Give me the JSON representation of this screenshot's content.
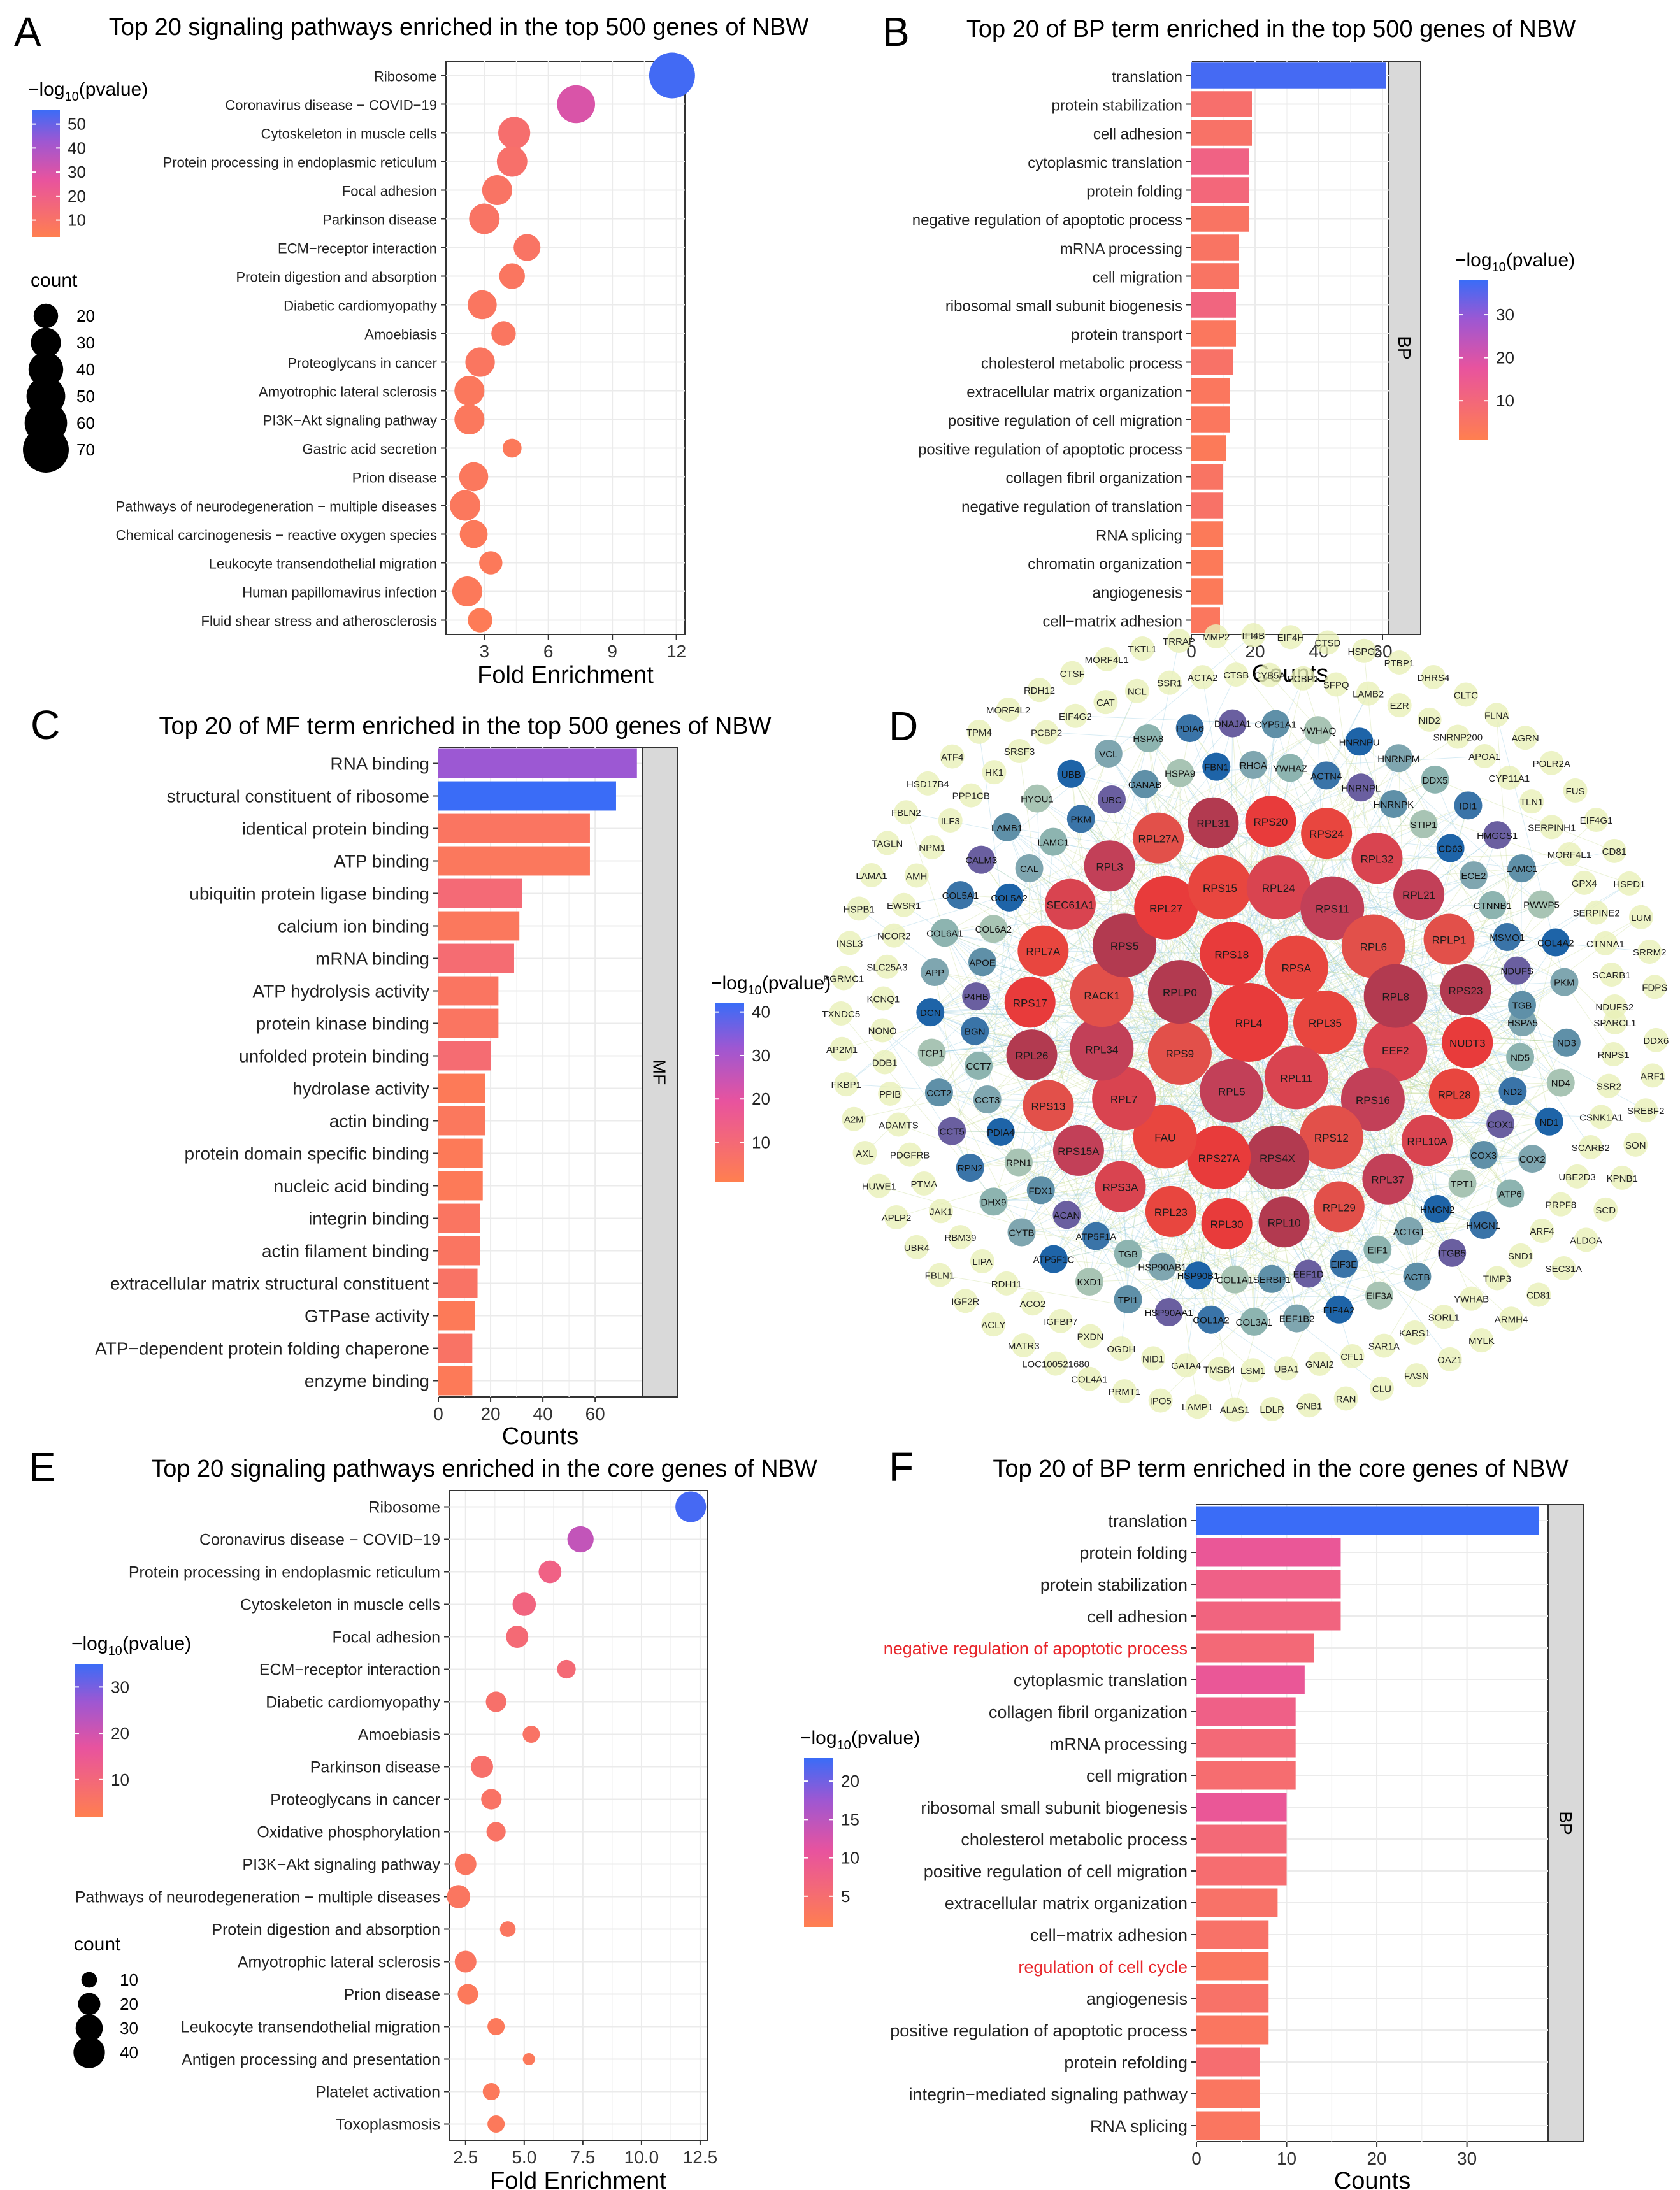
{
  "panels": {
    "A": {
      "letter": "A",
      "title": "Top 20 signaling pathways enriched in the top 500 genes of NBW",
      "legend_color_title": "−log10(pvalue)",
      "legend_color_ticks": [
        "50",
        "40",
        "30",
        "20",
        "10"
      ],
      "legend_size_title": "count",
      "legend_size_entries": [
        "20",
        "30",
        "40",
        "50",
        "60",
        "70"
      ]
    },
    "B": {
      "letter": "B",
      "title": "Top 20 of BP term enriched in the top 500 genes of NBW",
      "facet": "BP",
      "legend_color_title": "−log10(pvalue)",
      "legend_color_ticks": [
        "30",
        "20",
        "10"
      ]
    },
    "C": {
      "letter": "C",
      "title": "Top 20 of MF term enriched in the top 500 genes of NBW",
      "facet": "MF",
      "legend_color_title": "−log10(pvalue)",
      "legend_color_ticks": [
        "40",
        "30",
        "20",
        "10"
      ]
    },
    "D": {
      "letter": "D"
    },
    "E": {
      "letter": "E",
      "title": "Top 20 signaling pathways enriched in the core genes of NBW",
      "legend_color_title": "−log10(pvalue)",
      "legend_color_ticks": [
        "30",
        "20",
        "10"
      ],
      "legend_size_title": "count",
      "legend_size_entries": [
        "10",
        "20",
        "30",
        "40"
      ]
    },
    "F": {
      "letter": "F",
      "title": "Top 20 of BP term enriched in the core genes of NBW",
      "facet": "BP",
      "legend_color_title": "−log10(pvalue)",
      "legend_color_ticks": [
        "20",
        "15",
        "10",
        "5"
      ]
    }
  },
  "chart_data": [
    {
      "id": "A",
      "type": "scatter",
      "xlabel": "Fold Enrichment",
      "xlim": [
        1.2,
        12.4
      ],
      "xticks": [
        3,
        6,
        9,
        12
      ],
      "categories": [
        "Ribosome",
        "Coronavirus disease − COVID−19",
        "Cytoskeleton in muscle cells",
        "Protein processing in endoplasmic reticulum",
        "Focal adhesion",
        "Parkinson disease",
        "ECM−receptor interaction",
        "Protein digestion and absorption",
        "Diabetic cardiomyopathy",
        "Amoebiasis",
        "Proteoglycans in cancer",
        "Amyotrophic lateral sclerosis",
        "PI3K−Akt signaling pathway",
        "Gastric acid secretion",
        "Prion disease",
        "Pathways of neurodegeneration − multiple diseases",
        "Chemical carcinogenesis − reactive oxygen species",
        "Leukocyte transendothelial migration",
        "Human papillomavirus infection",
        "Fluid shear stress and atherosclerosis"
      ],
      "x": [
        11.8,
        7.3,
        4.4,
        4.3,
        3.6,
        3.0,
        5.0,
        4.3,
        2.9,
        3.9,
        2.8,
        2.3,
        2.3,
        4.3,
        2.5,
        2.1,
        2.5,
        3.3,
        2.2,
        2.8
      ],
      "count": [
        70,
        48,
        34,
        31,
        30,
        31,
        24,
        22,
        28,
        20,
        29,
        30,
        30,
        12,
        28,
        31,
        26,
        18,
        30,
        20
      ],
      "neglog10p": [
        55,
        30,
        12,
        11,
        9,
        9,
        9,
        8,
        8,
        8,
        8,
        7,
        7,
        6,
        7,
        7,
        6,
        6,
        6,
        5
      ],
      "color_lim": [
        3,
        56
      ],
      "size_lim": [
        10,
        70
      ]
    },
    {
      "id": "B",
      "type": "bar",
      "xlabel": "Counts",
      "xlim": [
        0,
        62
      ],
      "xticks": [
        0,
        20,
        40,
        60
      ],
      "categories": [
        "translation",
        "protein stabilization",
        "cell adhesion",
        "cytoplasmic translation",
        "protein folding",
        "negative regulation of apoptotic process",
        "mRNA processing",
        "cell migration",
        "ribosomal small subunit biogenesis",
        "protein transport",
        "cholesterol metabolic process",
        "extracellular matrix organization",
        "positive regulation of cell migration",
        "positive regulation of apoptotic process",
        "collagen fibril organization",
        "negative regulation of translation",
        "RNA splicing",
        "chromatin organization",
        "angiogenesis",
        "cell−matrix adhesion"
      ],
      "values": [
        61,
        19,
        19,
        18,
        18,
        18,
        15,
        15,
        14,
        14,
        13,
        12,
        12,
        11,
        10,
        10,
        10,
        10,
        10,
        9
      ],
      "neglog10p": [
        37,
        7,
        6,
        12,
        10,
        5,
        5,
        5,
        11,
        4,
        6,
        4,
        4,
        3,
        5,
        6,
        3,
        3,
        3,
        4
      ],
      "color_lim": [
        1,
        38
      ]
    },
    {
      "id": "C",
      "type": "bar",
      "xlabel": "Counts",
      "xlim": [
        0,
        78
      ],
      "xticks": [
        0,
        20,
        40,
        60
      ],
      "categories": [
        "RNA binding",
        "structural constituent of ribosome",
        "identical protein binding",
        "ATP binding",
        "ubiquitin protein ligase binding",
        "calcium ion binding",
        "mRNA binding",
        "ATP hydrolysis activity",
        "protein kinase binding",
        "unfolded protein binding",
        "hydrolase activity",
        "actin binding",
        "protein domain specific binding",
        "nucleic acid binding",
        "integrin binding",
        "actin filament binding",
        "extracellular matrix structural constituent",
        "GTPase activity",
        "ATP−dependent protein folding chaperone",
        "enzyme binding"
      ],
      "values": [
        76,
        68,
        58,
        58,
        32,
        31,
        29,
        23,
        23,
        20,
        18,
        18,
        17,
        17,
        16,
        16,
        15,
        14,
        13,
        13
      ],
      "neglog10p": [
        32,
        42,
        5,
        4,
        10,
        4,
        9,
        5,
        5,
        9,
        3,
        4,
        3,
        3,
        5,
        5,
        6,
        3,
        6,
        3
      ],
      "color_lim": [
        1,
        42
      ]
    },
    {
      "id": "D",
      "type": "network",
      "inner_nodes": [
        "RPL4",
        "RPL35",
        "RPL11",
        "RPL5",
        "RPS9",
        "RPLP0",
        "RPS18",
        "RPSA",
        "EEF2",
        "RPS16",
        "RPS12",
        "RPS4X",
        "RPS27A",
        "FAU",
        "RPL7",
        "RPL34",
        "RACK1",
        "RPS5",
        "RPL27",
        "RPS15",
        "RPL24",
        "RPS11",
        "RPL6",
        "RPL8",
        "NUDT3",
        "RPL28",
        "RPL10A",
        "RPL37",
        "RPL29",
        "RPL10",
        "RPL30",
        "RPL23",
        "RPS3A",
        "RPS15A",
        "RPS13",
        "RPL26",
        "RPS17",
        "RPL7A",
        "SEC61A1",
        "RPL3",
        "RPL27A",
        "RPL31",
        "RPS20",
        "RPS24",
        "RPL32",
        "RPL21",
        "RPLP1",
        "RPS23"
      ],
      "mid_nodes": [
        "HSPA5",
        "ND3",
        "ND5",
        "ND4",
        "ND2",
        "ND1",
        "COX1",
        "COX2",
        "COX3",
        "ATP6",
        "TPT1",
        "HMGN1",
        "HMGN2",
        "ITGB5",
        "ACTG1",
        "ACTB",
        "EIF1",
        "EIF3A",
        "EIF3E",
        "EIF4A2",
        "EEF1D",
        "EEF1B2",
        "SERBP1",
        "COL3A1",
        "COL1A1",
        "COL1A2",
        "HSP90B1",
        "HSP90AA1",
        "HSP90AB1",
        "TPI1",
        "TGB",
        "KXD1",
        "ATP5F1A",
        "ATP5F1C",
        "ACAN",
        "CYTB",
        "FDX1",
        "DHX9",
        "RPN1",
        "RPN2",
        "PDIA4",
        "CCT5",
        "CCT3",
        "CCT2",
        "CCT7",
        "TCP1",
        "BGN",
        "DCN",
        "P4HB",
        "APP",
        "APOE",
        "COL6A1",
        "COL6A2",
        "COL5A1",
        "COL5A2",
        "CALM3",
        "CAL",
        "LAMB1",
        "LAMC1",
        "HYOU1",
        "PKM",
        "UBB",
        "UBC",
        "VCL",
        "GANAB",
        "HSPA8",
        "HSPA9",
        "PDIA6",
        "FBN1",
        "DNAJA1",
        "RHOA",
        "CYP51A1",
        "YWHAZ",
        "YWHAQ",
        "ACTN4",
        "HNRNPU",
        "HNRNPL",
        "HNRNPM",
        "HNRNPK",
        "DDX5",
        "STIP1",
        "IDI1",
        "CD63",
        "HMGCS1",
        "ECE2",
        "LAMC1",
        "CTNNB1",
        "PWWP5",
        "MSMO1",
        "COL4A2",
        "NDUFS",
        "PKM",
        "TGB"
      ],
      "outer_nodes": [
        "SPARCL1",
        "DDX6",
        "RNPS1",
        "ARF1",
        "SSR2",
        "SREBF2",
        "CSNK1A1",
        "SON",
        "SCARB2",
        "KPNB1",
        "UBE2D3",
        "SCD",
        "PRPF8",
        "ALDOA",
        "ARF4",
        "SEC31A",
        "SND1",
        "CD81",
        "TIMP3",
        "ARMH4",
        "YWHAB",
        "MYLK",
        "SORL1",
        "OAZ1",
        "KARS1",
        "FASN",
        "SAR1A",
        "CLU",
        "CFL1",
        "RAN",
        "GNAI2",
        "GNB1",
        "UBA1",
        "LDLR",
        "LSM1",
        "ALAS1",
        "TMSB4",
        "LAMP1",
        "GATA4",
        "IPO5",
        "NID1",
        "PRMT1",
        "OGDH",
        "COL4A1",
        "PXDN",
        "LOC100521680",
        "IGFBP7",
        "MATR3",
        "ACO2",
        "ACLY",
        "RDH11",
        "IGF2R",
        "LIPA",
        "FBLN1",
        "RBM39",
        "UBR4",
        "JAK1",
        "APLP2",
        "PTMA",
        "HUWE1",
        "PDGFRB",
        "AXL",
        "ADAMTS",
        "A2M",
        "PPIB",
        "FKBP1",
        "DDB1",
        "AP2M1",
        "NONO",
        "TXNDC5",
        "KCNQ1",
        "PGRMC1",
        "SLC25A3",
        "INSL3",
        "NCOR2",
        "HSPB1",
        "EWSR1",
        "LAMA1",
        "AMH",
        "TAGLN",
        "NPM1",
        "FBLN2",
        "ILF3",
        "HSD17B4",
        "PPP1CB",
        "ATF4",
        "HK1",
        "TPM4",
        "SRSF3",
        "MORF4L2",
        "PCBP2",
        "RDH12",
        "EIF4G2",
        "CTSF",
        "CAT",
        "MORF4L1",
        "NCL",
        "TKTL1",
        "SSR1",
        "TRRAP",
        "ACTA2",
        "MMP2",
        "CTSB",
        "IFI4B",
        "CYB5A",
        "EIF4H",
        "PCBP1",
        "CTSD",
        "SFPQ",
        "HSPG2",
        "LAMB2",
        "PTBP1",
        "EZR",
        "DHRS4",
        "NID2",
        "CLTC",
        "SNRNP200",
        "FLNA",
        "APOA1",
        "AGRN",
        "CYP11A1",
        "POLR2A",
        "TLN1",
        "FUS",
        "SERPINH1",
        "EIF4G1",
        "MORF4L1",
        "CD81",
        "GPX4",
        "HSPD1",
        "SERPINE2",
        "LUM",
        "CTNNA1",
        "SRRM2",
        "SCARB1",
        "FDPS",
        "NDUFS2"
      ]
    },
    {
      "id": "E",
      "type": "scatter",
      "xlabel": "Fold Enrichment",
      "xlim": [
        1.8,
        12.8
      ],
      "xticks": [
        2.5,
        5.0,
        7.5,
        10.0,
        12.5
      ],
      "xtick_labels": [
        "2.5",
        "5.0",
        "7.5",
        "10.0",
        "12.5"
      ],
      "categories": [
        "Ribosome",
        "Coronavirus disease − COVID−19",
        "Protein processing in endoplasmic reticulum",
        "Cytoskeleton in muscle cells",
        "Focal adhesion",
        "ECM−receptor interaction",
        "Diabetic cardiomyopathy",
        "Amoebiasis",
        "Parkinson disease",
        "Proteoglycans in cancer",
        "Oxidative phosphorylation",
        "PI3K−Akt signaling pathway",
        "Pathways of neurodegeneration − multiple diseases",
        "Protein digestion and absorption",
        "Amyotrophic lateral sclerosis",
        "Prion disease",
        "Leukocyte transendothelial migration",
        "Antigen processing and presentation",
        "Platelet activation",
        "Toxoplasmosis"
      ],
      "x": [
        12.1,
        7.4,
        6.1,
        5.0,
        4.7,
        6.8,
        3.8,
        5.3,
        3.2,
        3.6,
        3.8,
        2.5,
        2.2,
        4.3,
        2.5,
        2.6,
        3.8,
        5.2,
        3.6,
        3.8
      ],
      "count": [
        38,
        28,
        21,
        22,
        20,
        14,
        17,
        12,
        20,
        17,
        15,
        19,
        22,
        10,
        19,
        17,
        12,
        6,
        12,
        12
      ],
      "neglog10p": [
        34,
        22,
        12,
        11,
        9,
        9,
        7,
        6,
        7,
        6,
        6,
        5,
        5,
        5,
        5,
        4,
        4,
        4,
        4,
        4
      ],
      "color_lim": [
        2,
        35
      ],
      "size_lim": [
        3,
        40
      ]
    },
    {
      "id": "F",
      "type": "bar",
      "xlabel": "Counts",
      "xlim": [
        0,
        39
      ],
      "xticks": [
        0,
        10,
        20,
        30
      ],
      "categories": [
        "translation",
        "protein folding",
        "protein stabilization",
        "cell adhesion",
        "negative regulation of apoptotic process",
        "cytoplasmic translation",
        "collagen fibril organization",
        "mRNA processing",
        "cell migration",
        "ribosomal small subunit biogenesis",
        "cholesterol metabolic process",
        "positive regulation of cell migration",
        "extracellular matrix organization",
        "cell−matrix adhesion",
        "regulation of cell cycle",
        "angiogenesis",
        "positive regulation of apoptotic process",
        "protein refolding",
        "integrin−mediated signaling pathway",
        "RNA splicing"
      ],
      "highlighted": [
        "negative regulation of apoptotic process",
        "regulation of cell cycle"
      ],
      "values": [
        38,
        16,
        16,
        16,
        13,
        12,
        11,
        11,
        11,
        10,
        10,
        10,
        9,
        8,
        8,
        8,
        8,
        7,
        7,
        7
      ],
      "neglog10p": [
        23,
        10,
        8,
        7,
        6,
        10,
        8,
        6,
        5,
        10,
        6,
        5,
        4,
        4,
        3,
        4,
        3,
        5,
        3,
        3
      ],
      "color_lim": [
        1,
        23
      ]
    }
  ],
  "colors": {
    "low": "#FF7F50",
    "mid": "#E8539E",
    "mid2": "#9E57D2",
    "high": "#3A6CF7",
    "highlight": "#E8262B",
    "strip": "#D9D9D9",
    "grid": "#EBEBEB"
  }
}
